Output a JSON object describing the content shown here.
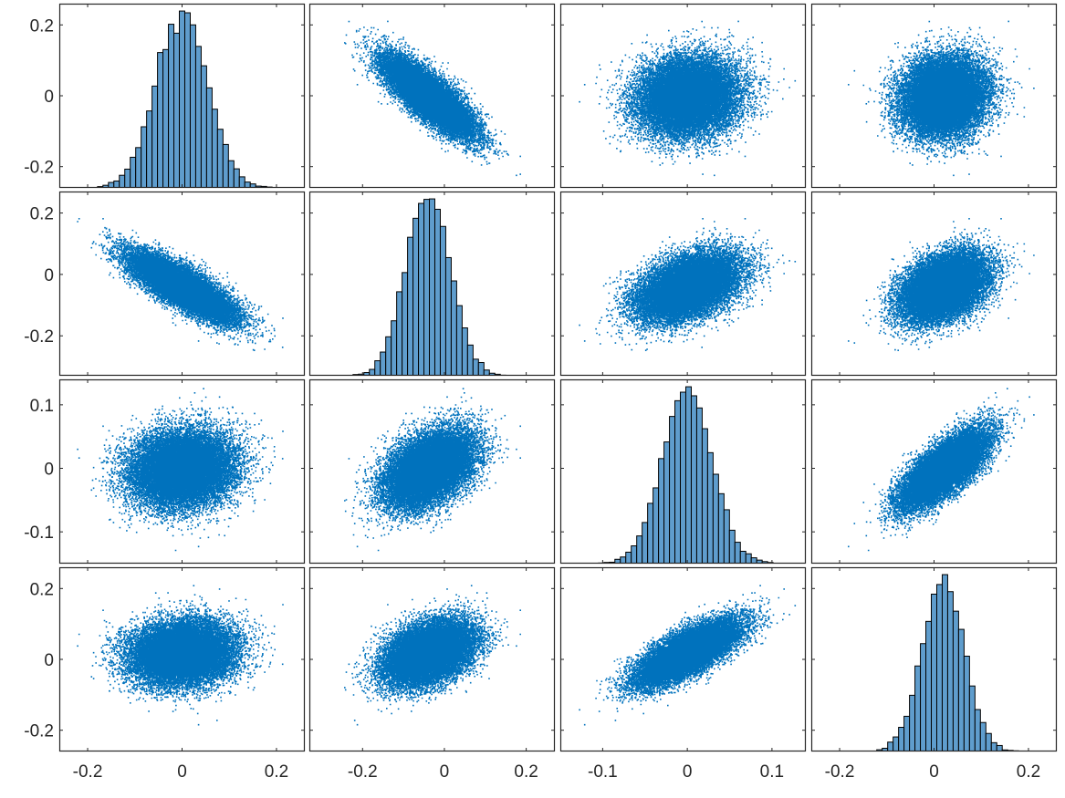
{
  "chart_data": {
    "type": "scatter-matrix",
    "variables": 4,
    "colors": {
      "scatter": "#0072bd",
      "hist_fill": "#5f9dcd",
      "hist_edge": "#000000",
      "axes": "#262626"
    },
    "points_per_panel": 20000,
    "distributions": {
      "means": [
        0.0,
        -0.04,
        0.0,
        0.02
      ],
      "stds": [
        0.055,
        0.055,
        0.03,
        0.045
      ],
      "correlations": [
        [
          1,
          -0.8,
          0.1,
          0.1
        ],
        [
          -0.8,
          1,
          0.45,
          0.4
        ],
        [
          0.1,
          0.45,
          1,
          0.75
        ],
        [
          0.1,
          0.4,
          0.75,
          1
        ]
      ]
    },
    "axes": [
      {
        "range": [
          -0.26,
          0.26
        ],
        "ticks": [
          -0.2,
          0,
          0.2
        ],
        "tick_labels": [
          "-0.2",
          "0",
          "0.2"
        ]
      },
      {
        "range": [
          -0.33,
          0.27
        ],
        "ticks": [
          -0.2,
          0,
          0.2
        ],
        "tick_labels": [
          "-0.2",
          "0",
          "0.2"
        ]
      },
      {
        "range": [
          -0.15,
          0.14
        ],
        "ticks": [
          -0.1,
          0,
          0.1
        ],
        "tick_labels": [
          "-0.1",
          "0",
          "0.1"
        ]
      },
      {
        "range": [
          -0.26,
          0.26
        ],
        "ticks": [
          -0.2,
          0,
          0.2
        ],
        "tick_labels": [
          "-0.2",
          "0",
          "0.2"
        ]
      }
    ],
    "histogram_bins": 45,
    "title": "",
    "xlabel": "",
    "ylabel": ""
  }
}
